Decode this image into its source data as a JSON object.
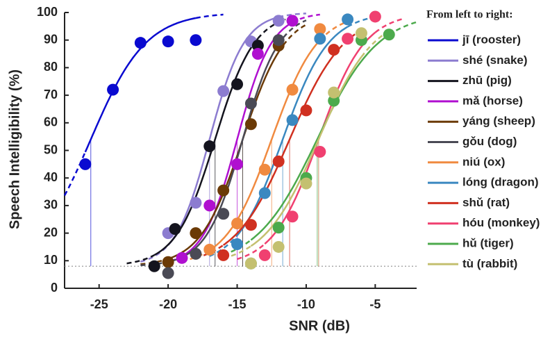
{
  "chart_data": {
    "type": "scatter",
    "xlabel": "SNR (dB)",
    "ylabel": "Speech Intelligibility (%)",
    "legend_title": "From left to right:",
    "xlim": [
      -27.5,
      -2
    ],
    "ylim": [
      0,
      100
    ],
    "xticks": [
      -25,
      -20,
      -15,
      -10,
      -5
    ],
    "yticks": [
      0,
      10,
      20,
      30,
      40,
      50,
      60,
      70,
      80,
      90,
      100
    ],
    "floor": 8,
    "series": [
      {
        "name": "jī (rooster)",
        "color": "#0a0ad0",
        "x": [
          -26,
          -24,
          -22,
          -20,
          -18
        ],
        "values": [
          45,
          72,
          89,
          89.5,
          90
        ],
        "threshold": -25.6,
        "slope": 0.5
      },
      {
        "name": "shé (snake)",
        "color": "#8c7cd0",
        "x": [
          -20,
          -18,
          -16,
          -14,
          -12
        ],
        "values": [
          20,
          31,
          71.5,
          89.5,
          97
        ],
        "threshold": -17,
        "slope": 0.8
      },
      {
        "name": "zhū (pig)",
        "color": "#14141e",
        "x": [
          -21,
          -19.5,
          -17,
          -15,
          -13.5
        ],
        "values": [
          8,
          21.5,
          51.5,
          74,
          88
        ],
        "threshold": -16.6,
        "slope": 0.7
      },
      {
        "name": "mǎ (horse)",
        "color": "#b010d0",
        "x": [
          -19,
          -17,
          -15,
          -13.5,
          -11
        ],
        "values": [
          11,
          30,
          45,
          85,
          97
        ],
        "threshold": -15,
        "slope": 0.8
      },
      {
        "name": "yáng (sheep)",
        "color": "#6b3a06",
        "x": [
          -20,
          -18,
          -16,
          -14,
          -12
        ],
        "values": [
          9.5,
          20,
          35.5,
          59.5,
          88
        ],
        "threshold": -14.6,
        "slope": 0.65
      },
      {
        "name": "gǒu (dog)",
        "color": "#4a4a55",
        "x": [
          -20,
          -18,
          -16,
          -14,
          -12
        ],
        "values": [
          5.5,
          12.5,
          27,
          67,
          90
        ],
        "threshold": -14.6,
        "slope": 0.75
      },
      {
        "name": "niú (ox)",
        "color": "#f08a40",
        "x": [
          -17,
          -15,
          -13,
          -11,
          -9
        ],
        "values": [
          14,
          23.5,
          43,
          72,
          94
        ],
        "threshold": -12.5,
        "slope": 0.6
      },
      {
        "name": "lóng (dragon)",
        "color": "#3a88c0",
        "x": [
          -15,
          -13,
          -11,
          -9,
          -7
        ],
        "values": [
          16,
          34.5,
          61,
          90.5,
          97.5
        ],
        "threshold": -11.7,
        "slope": 0.6
      },
      {
        "name": "shǔ (rat)",
        "color": "#d03020",
        "x": [
          -16,
          -14,
          -12,
          -10,
          -8
        ],
        "values": [
          12,
          23,
          46,
          64.5,
          86.5
        ],
        "threshold": -11.2,
        "slope": 0.5
      },
      {
        "name": "hóu (monkey)",
        "color": "#f04070",
        "x": [
          -13,
          -11,
          -9,
          -7,
          -5
        ],
        "values": [
          12,
          26,
          49.5,
          90.5,
          98.5
        ],
        "threshold": -9.1,
        "slope": 0.6
      },
      {
        "name": "hǔ (tiger)",
        "color": "#4caa4c",
        "x": [
          -14,
          -12,
          -10,
          -8,
          -6,
          -4
        ],
        "values": [
          9,
          22,
          40,
          68,
          90,
          92
        ],
        "threshold": -9.2,
        "slope": 0.45
      },
      {
        "name": "tù (rabbit)",
        "color": "#c4c070",
        "x": [
          -14,
          -12,
          -10,
          -8,
          -6
        ],
        "values": [
          9,
          15,
          38,
          71,
          92.5
        ],
        "threshold": -9.1,
        "slope": 0.5
      }
    ]
  }
}
